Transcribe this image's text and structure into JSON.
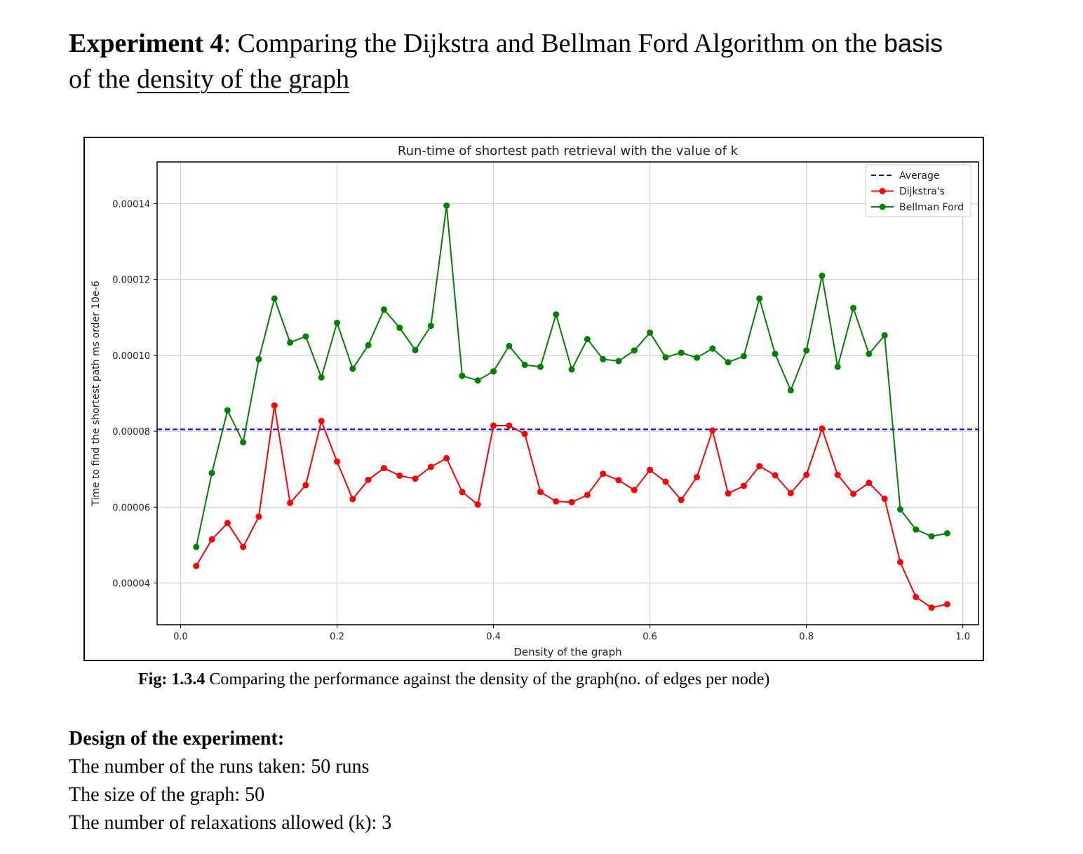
{
  "heading": {
    "bold": "Experiment 4",
    "text_before_sans": ": Comparing the Dijkstra and Bellman Ford Algorithm on the ",
    "sans_word": "basis",
    "line2_prefix": "of the ",
    "underlined": "density of the graph"
  },
  "caption": {
    "bold": "Fig: 1.3.4",
    "text": " Comparing the performance against the density of the graph(no. of edges per node)"
  },
  "design": {
    "title": "Design of the experiment:",
    "lines": [
      "The number of the runs taken: 50 runs",
      "The size of the graph: 50",
      "The number of relaxations allowed (k): 3"
    ]
  },
  "chart_data": {
    "type": "line",
    "title": "Run-time of shortest path retrieval with the value of k",
    "xlabel": "Density of the graph",
    "ylabel": "Time to find the shortest path ms order 10e-6",
    "xlim": [
      -0.03,
      1.02
    ],
    "ylim": [
      2.9e-05,
      0.000151
    ],
    "x_ticks": [
      "0.0",
      "0.2",
      "0.4",
      "0.6",
      "0.8",
      "1.0"
    ],
    "y_ticks": [
      "0.00004",
      "0.00006",
      "0.00008",
      "0.00010",
      "0.00012",
      "0.00014"
    ],
    "grid": true,
    "legend_position": "top-right",
    "x": [
      0.02,
      0.04,
      0.06,
      0.08,
      0.1,
      0.12,
      0.14,
      0.16,
      0.18,
      0.2,
      0.22,
      0.24,
      0.26,
      0.28,
      0.3,
      0.32,
      0.34,
      0.36,
      0.38,
      0.4,
      0.42,
      0.44,
      0.46,
      0.48,
      0.5,
      0.52,
      0.54,
      0.56,
      0.58,
      0.6,
      0.62,
      0.64,
      0.66,
      0.68,
      0.7,
      0.72,
      0.74,
      0.76,
      0.78,
      0.8,
      0.82,
      0.84,
      0.86,
      0.88,
      0.9,
      0.92,
      0.94,
      0.96,
      0.98
    ],
    "series": [
      {
        "name": "Average",
        "style": "dashed",
        "color": "#0000ff",
        "value": 8.05e-05
      },
      {
        "name": "Dijkstra's",
        "color": "#ff0000",
        "values": [
          4.45e-05,
          5.15e-05,
          5.58e-05,
          4.95e-05,
          5.75e-05,
          8.68e-05,
          6.11e-05,
          6.58e-05,
          8.27e-05,
          7.2e-05,
          6.21e-05,
          6.72e-05,
          7.03e-05,
          6.83e-05,
          6.75e-05,
          7.06e-05,
          7.29e-05,
          6.4e-05,
          6.07e-05,
          8.15e-05,
          8.15e-05,
          7.93e-05,
          6.4e-05,
          6.15e-05,
          6.13e-05,
          6.32e-05,
          6.88e-05,
          6.71e-05,
          6.45e-05,
          6.98e-05,
          6.67e-05,
          6.19e-05,
          6.79e-05,
          8.02e-05,
          6.36e-05,
          6.56e-05,
          7.08e-05,
          6.84e-05,
          6.37e-05,
          6.85e-05,
          8.07e-05,
          6.85e-05,
          6.35e-05,
          6.64e-05,
          6.22e-05,
          4.55e-05,
          3.63e-05,
          3.35e-05,
          3.44e-05
        ]
      },
      {
        "name": "Bellman Ford",
        "color": "#008000",
        "values": [
          4.95e-05,
          6.9e-05,
          8.55e-05,
          7.71e-05,
          9.9e-05,
          0.000115,
          0.0001034,
          0.000105,
          9.42e-05,
          0.0001086,
          9.65e-05,
          0.0001027,
          0.0001121,
          0.0001073,
          0.0001014,
          0.0001078,
          0.0001395,
          9.46e-05,
          9.34e-05,
          9.58e-05,
          0.0001025,
          9.75e-05,
          9.7e-05,
          0.0001108,
          9.63e-05,
          0.0001043,
          9.9e-05,
          9.85e-05,
          0.0001013,
          0.000106,
          9.95e-05,
          0.0001007,
          9.94e-05,
          0.0001018,
          9.82e-05,
          9.98e-05,
          0.000115,
          0.0001004,
          9.08e-05,
          0.0001013,
          0.000121,
          9.7e-05,
          0.0001125,
          0.0001004,
          0.0001053,
          5.94e-05,
          5.41e-05,
          5.23e-05,
          5.31e-05
        ]
      }
    ]
  }
}
